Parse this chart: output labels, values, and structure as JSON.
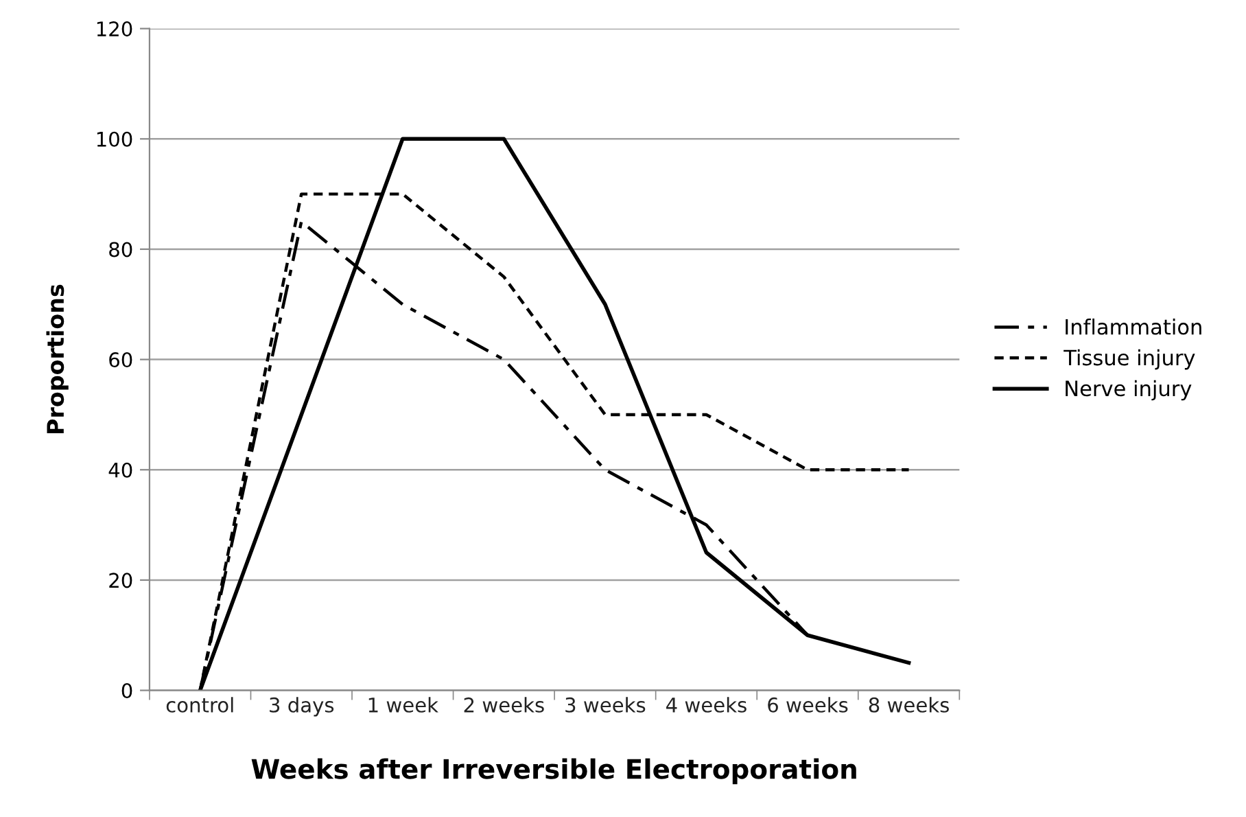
{
  "chart_data": {
    "type": "line",
    "xlabel": "Weeks after Irreversible Electroporation",
    "ylabel": "Proportions",
    "categories": [
      "control",
      "3 days",
      "1 week",
      "2 weeks",
      "3 weeks",
      "4 weeks",
      "6 weeks",
      "8 weeks"
    ],
    "series": [
      {
        "name": "Inflammation",
        "color": "#000000",
        "line_style": "dashdot",
        "values": [
          0,
          85,
          70,
          60,
          40,
          30,
          10,
          null
        ]
      },
      {
        "name": "Tissue injury",
        "color": "#000000",
        "line_style": "dashed",
        "values": [
          0,
          90,
          90,
          75,
          50,
          50,
          40,
          40
        ]
      },
      {
        "name": "Nerve injury",
        "color": "#000000",
        "line_style": "solid",
        "values": [
          0,
          50,
          100,
          100,
          70,
          25,
          10,
          5
        ]
      }
    ],
    "ylim": [
      0,
      120
    ],
    "yticks": [
      0,
      20,
      40,
      60,
      80,
      100,
      120
    ],
    "grid": "y",
    "legend": "right",
    "marker": "none"
  }
}
